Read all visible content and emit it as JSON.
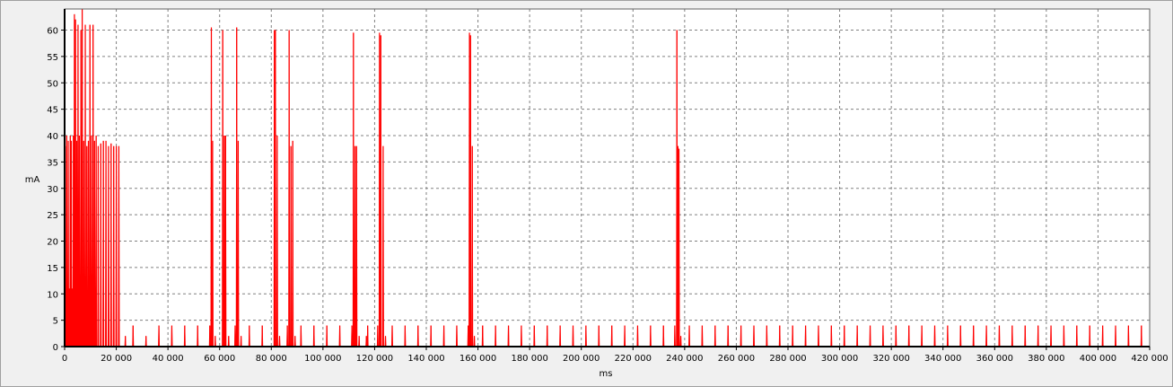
{
  "chart_data": {
    "type": "line",
    "title": "",
    "xlabel": "ms",
    "ylabel": "mA",
    "xlim": [
      0,
      420000
    ],
    "ylim": [
      0,
      64
    ],
    "grid": true,
    "line_color": "#ff0000",
    "x_ticks": [
      0,
      20000,
      40000,
      60000,
      80000,
      100000,
      120000,
      140000,
      160000,
      180000,
      200000,
      220000,
      240000,
      260000,
      280000,
      300000,
      320000,
      340000,
      360000,
      380000,
      400000,
      420000
    ],
    "x_tick_labels": [
      "0",
      "20 000",
      "40 000",
      "60 000",
      "80 000",
      "100 000",
      "120 000",
      "140 000",
      "160 000",
      "180 000",
      "200 000",
      "220 000",
      "240 000",
      "260 000",
      "280 000",
      "300 000",
      "320 000",
      "340 000",
      "360 000",
      "380 000",
      "400 000",
      "420 000"
    ],
    "y_ticks": [
      0,
      5,
      10,
      15,
      20,
      25,
      30,
      35,
      40,
      45,
      50,
      55,
      60
    ],
    "y_tick_labels": [
      "0",
      "5",
      "10",
      "15",
      "20",
      "25",
      "30",
      "35",
      "40",
      "45",
      "50",
      "55",
      "60"
    ],
    "series": [
      {
        "points": [
          [
            200,
            38
          ],
          [
            500,
            5
          ],
          [
            800,
            40
          ],
          [
            1100,
            10
          ],
          [
            1400,
            39
          ],
          [
            1800,
            11
          ],
          [
            2200,
            40
          ],
          [
            2600,
            39
          ],
          [
            3000,
            11
          ],
          [
            3400,
            40
          ],
          [
            3800,
            63
          ],
          [
            4200,
            62
          ],
          [
            4700,
            39
          ],
          [
            5200,
            61
          ],
          [
            5700,
            40
          ],
          [
            6300,
            60
          ],
          [
            6800,
            64
          ],
          [
            7400,
            39
          ],
          [
            8000,
            61
          ],
          [
            8600,
            38
          ],
          [
            9200,
            39
          ],
          [
            9800,
            61
          ],
          [
            10400,
            40
          ],
          [
            11000,
            61
          ],
          [
            11600,
            39
          ],
          [
            12200,
            40
          ],
          [
            13000,
            38
          ],
          [
            14000,
            38.5
          ],
          [
            15000,
            39
          ],
          [
            16000,
            39
          ],
          [
            17000,
            38
          ],
          [
            18000,
            38.5
          ],
          [
            19000,
            38
          ],
          [
            20000,
            38
          ],
          [
            21000,
            38
          ],
          [
            23500,
            2
          ],
          [
            26500,
            4
          ],
          [
            31500,
            2
          ],
          [
            36500,
            4
          ],
          [
            41500,
            4
          ],
          [
            46500,
            4
          ],
          [
            51500,
            4
          ],
          [
            56200,
            4
          ],
          [
            56800,
            60.5
          ],
          [
            57300,
            39
          ],
          [
            58300,
            2
          ],
          [
            61200,
            60
          ],
          [
            61800,
            40
          ],
          [
            62300,
            40
          ],
          [
            63500,
            2
          ],
          [
            66000,
            4
          ],
          [
            66600,
            60.5
          ],
          [
            67200,
            39
          ],
          [
            68300,
            2
          ],
          [
            71500,
            4
          ],
          [
            76500,
            4
          ],
          [
            81200,
            60
          ],
          [
            81600,
            60
          ],
          [
            82300,
            40
          ],
          [
            83200,
            2
          ],
          [
            86200,
            4
          ],
          [
            86900,
            60
          ],
          [
            87600,
            38
          ],
          [
            88300,
            39
          ],
          [
            89200,
            2
          ],
          [
            91500,
            4
          ],
          [
            96500,
            4
          ],
          [
            101500,
            4
          ],
          [
            106500,
            4
          ],
          [
            111200,
            4
          ],
          [
            111800,
            59.5
          ],
          [
            112400,
            38
          ],
          [
            113000,
            38
          ],
          [
            114000,
            2
          ],
          [
            116800,
            2
          ],
          [
            117300,
            4
          ],
          [
            121200,
            4
          ],
          [
            121900,
            59.5
          ],
          [
            122400,
            59
          ],
          [
            123300,
            38
          ],
          [
            124200,
            2
          ],
          [
            126800,
            4
          ],
          [
            131800,
            4
          ],
          [
            136800,
            4
          ],
          [
            141800,
            4
          ],
          [
            146800,
            4
          ],
          [
            151800,
            4
          ],
          [
            156200,
            4
          ],
          [
            156700,
            59.5
          ],
          [
            157100,
            59
          ],
          [
            157800,
            38
          ],
          [
            158600,
            2
          ],
          [
            161800,
            4
          ],
          [
            166800,
            4
          ],
          [
            171800,
            4
          ],
          [
            176800,
            4
          ],
          [
            181800,
            4
          ],
          [
            186800,
            4
          ],
          [
            191800,
            4
          ],
          [
            196800,
            4
          ],
          [
            201800,
            4
          ],
          [
            206800,
            4
          ],
          [
            211800,
            4
          ],
          [
            216800,
            4
          ],
          [
            221800,
            4
          ],
          [
            226800,
            4
          ],
          [
            231800,
            4
          ],
          [
            236200,
            4
          ],
          [
            237000,
            60
          ],
          [
            237400,
            38
          ],
          [
            237800,
            37.5
          ],
          [
            238500,
            2
          ],
          [
            241800,
            4
          ],
          [
            246800,
            4
          ],
          [
            251800,
            4
          ],
          [
            256800,
            4
          ],
          [
            261800,
            4
          ],
          [
            266800,
            4
          ],
          [
            271800,
            4
          ],
          [
            276800,
            4
          ],
          [
            281800,
            4
          ],
          [
            286800,
            4
          ],
          [
            291800,
            4
          ],
          [
            296800,
            4
          ],
          [
            301800,
            4
          ],
          [
            306800,
            4
          ],
          [
            311800,
            4
          ],
          [
            316800,
            4
          ],
          [
            321800,
            4
          ],
          [
            326800,
            4
          ],
          [
            331800,
            4
          ],
          [
            336800,
            4
          ],
          [
            341800,
            4
          ],
          [
            346800,
            4
          ],
          [
            351800,
            4
          ],
          [
            356800,
            4
          ],
          [
            361800,
            4
          ],
          [
            366800,
            4
          ],
          [
            371800,
            4
          ],
          [
            376800,
            4
          ],
          [
            381800,
            4
          ],
          [
            386800,
            4
          ],
          [
            391800,
            4
          ],
          [
            396800,
            4
          ],
          [
            401800,
            4
          ],
          [
            406800,
            4
          ],
          [
            411800,
            4
          ],
          [
            416800,
            4
          ]
        ]
      }
    ]
  }
}
